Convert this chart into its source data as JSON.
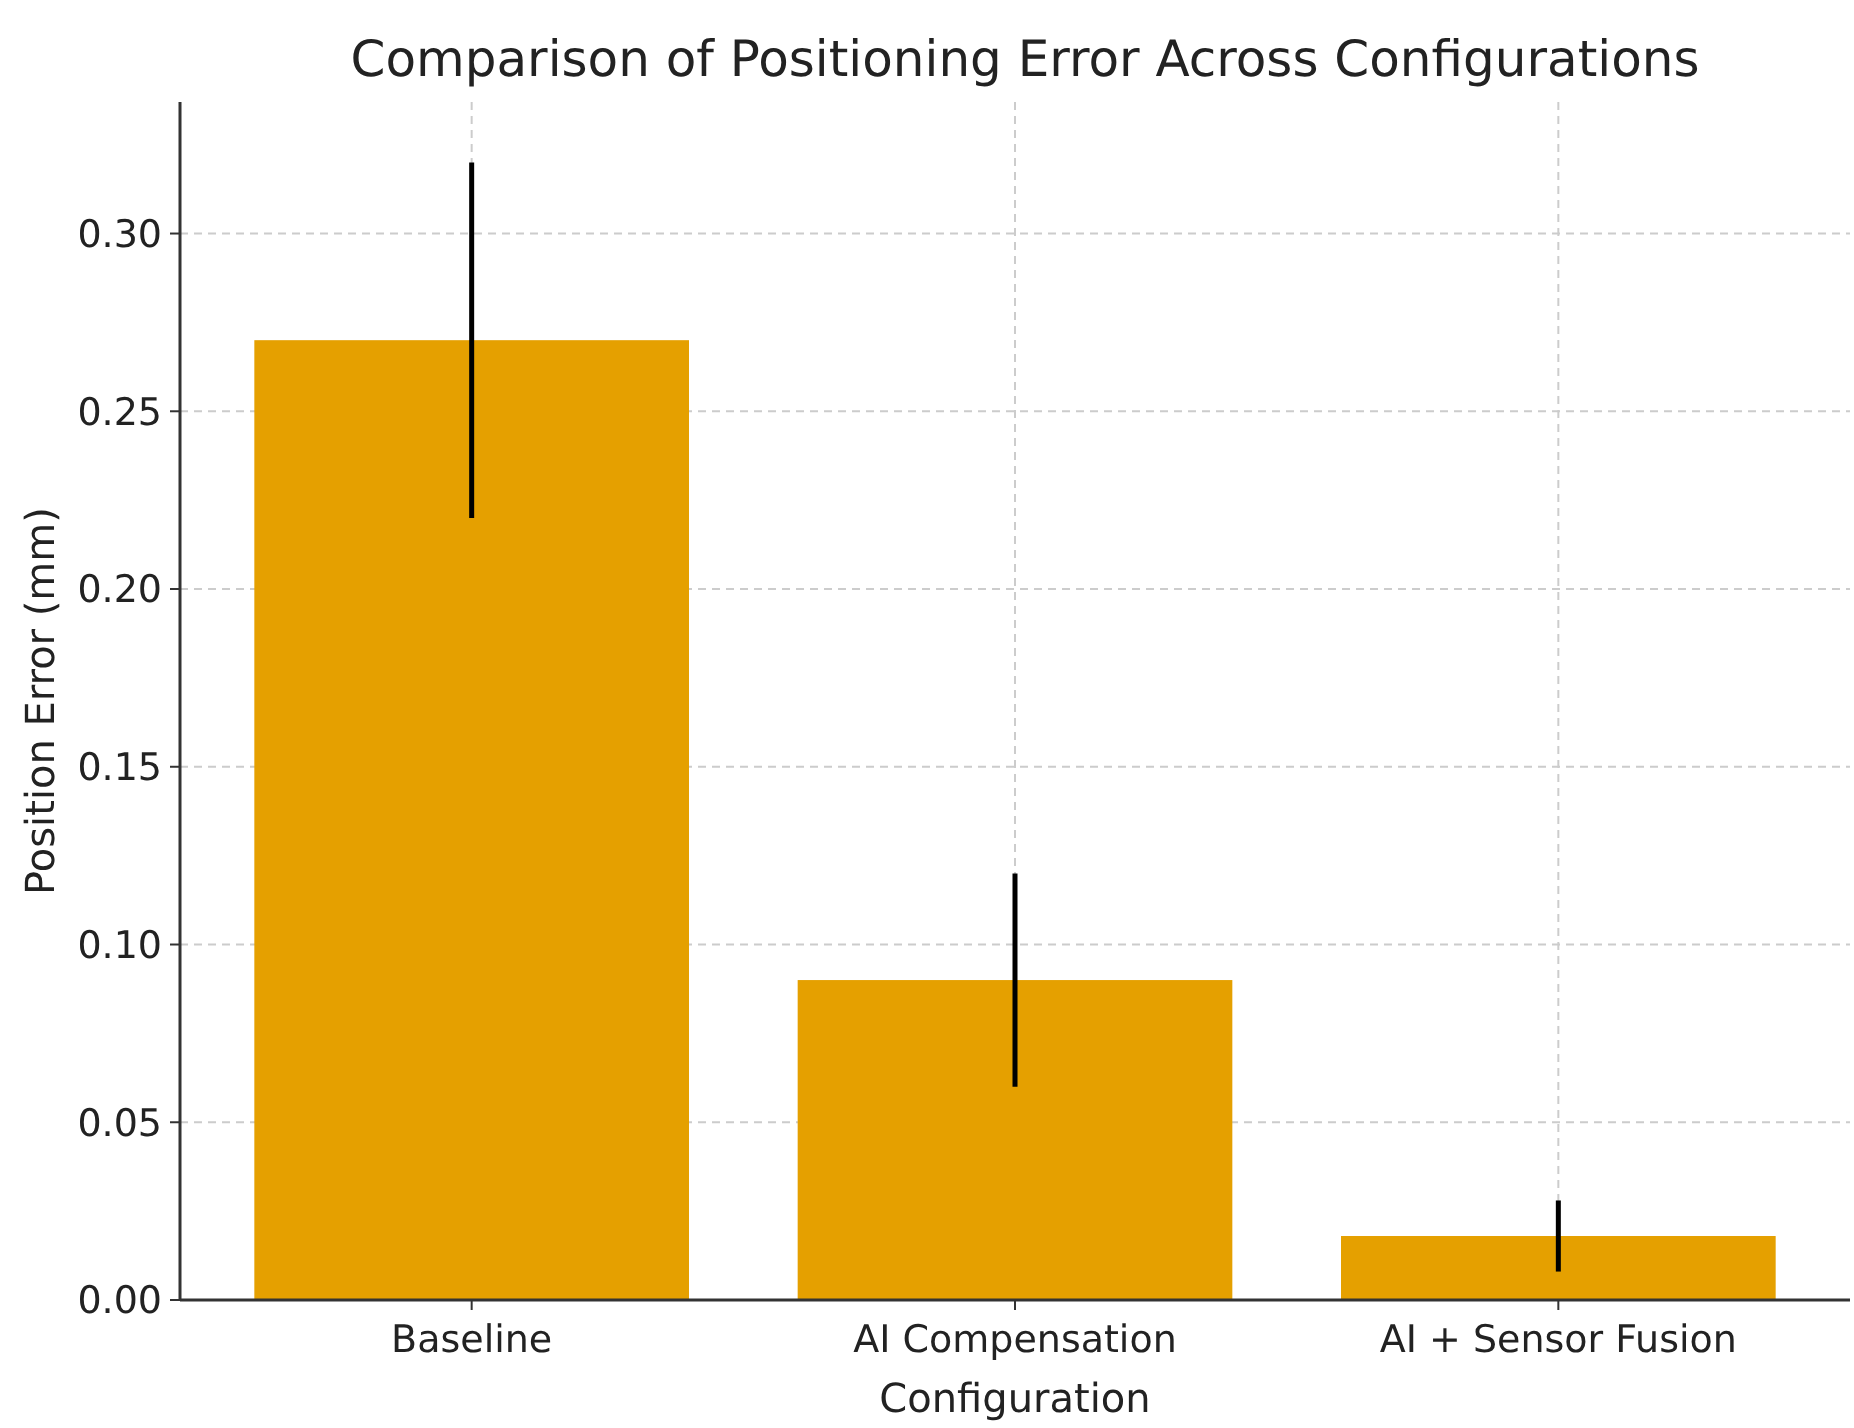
{
  "chart_data": {
    "type": "bar",
    "title": "Comparison of Positioning Error Across Configurations",
    "xlabel": "Configuration",
    "ylabel": "Position Error (mm)",
    "categories": [
      "Baseline",
      "AI Compensation",
      "AI + Sensor Fusion"
    ],
    "values": [
      0.27,
      0.09,
      0.018
    ],
    "errors": [
      0.05,
      0.03,
      0.01
    ],
    "color": "#e5a000",
    "ylim": [
      0,
      0.337
    ],
    "yticks": [
      {
        "value": 0,
        "label": "0.00"
      },
      {
        "value": 0.05,
        "label": "0.05"
      },
      {
        "value": 0.1,
        "label": "0.10"
      },
      {
        "value": 0.15,
        "label": "0.15"
      },
      {
        "value": 0.2,
        "label": "0.20"
      },
      {
        "value": 0.25,
        "label": "0.25"
      },
      {
        "value": 0.3,
        "label": "0.30"
      }
    ],
    "grid": true
  }
}
